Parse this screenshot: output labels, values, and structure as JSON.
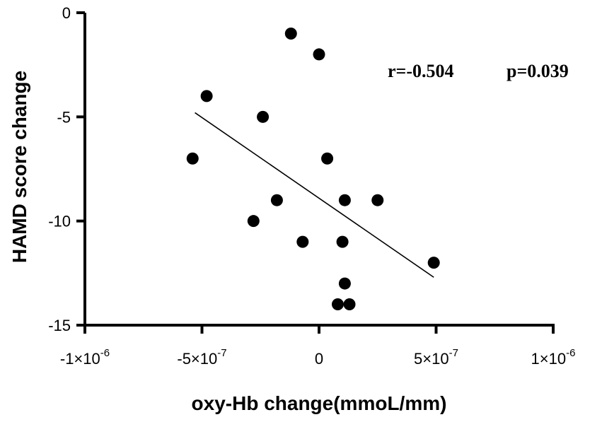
{
  "chart_data": {
    "type": "scatter",
    "title": "",
    "xlabel": "oxy-Hb change(mmoL/mm)",
    "ylabel": "HAMD score change",
    "xlim": [
      -1e-06,
      1e-06
    ],
    "ylim": [
      -15,
      0
    ],
    "x_ticks": [
      {
        "value": -1e-06,
        "mant": "-1",
        "exp": "-6"
      },
      {
        "value": -5e-07,
        "mant": "-5",
        "exp": "-7"
      },
      {
        "value": 0,
        "mant": "0",
        "exp": ""
      },
      {
        "value": 5e-07,
        "mant": "5",
        "exp": "-7"
      },
      {
        "value": 1e-06,
        "mant": "1",
        "exp": "-6"
      }
    ],
    "y_ticks": [
      {
        "value": 0,
        "label": "0"
      },
      {
        "value": -5,
        "label": "-5"
      },
      {
        "value": -10,
        "label": "-10"
      },
      {
        "value": -15,
        "label": "-15"
      }
    ],
    "annotation": {
      "r_text": "r=-0.504",
      "p_text": "p=0.039"
    },
    "points": [
      {
        "x": -1.2e-07,
        "y": -1
      },
      {
        "x": 0.0,
        "y": -2
      },
      {
        "x": -4.8e-07,
        "y": -4
      },
      {
        "x": -2.4e-07,
        "y": -5
      },
      {
        "x": -5.4e-07,
        "y": -7
      },
      {
        "x": 3.5e-08,
        "y": -7
      },
      {
        "x": -1.8e-07,
        "y": -9
      },
      {
        "x": 1.1e-07,
        "y": -9
      },
      {
        "x": 2.5e-07,
        "y": -9
      },
      {
        "x": -2.8e-07,
        "y": -10
      },
      {
        "x": -7e-08,
        "y": -11
      },
      {
        "x": 1e-07,
        "y": -11
      },
      {
        "x": 4.9e-07,
        "y": -12
      },
      {
        "x": 1.1e-07,
        "y": -13
      },
      {
        "x": 8e-08,
        "y": -14
      },
      {
        "x": 1.3e-07,
        "y": -14
      }
    ],
    "regression_line": {
      "x": [
        -5.3e-07,
        4.9e-07
      ],
      "y": [
        -4.8,
        -12.7
      ]
    },
    "grid": false,
    "legend": "none"
  }
}
